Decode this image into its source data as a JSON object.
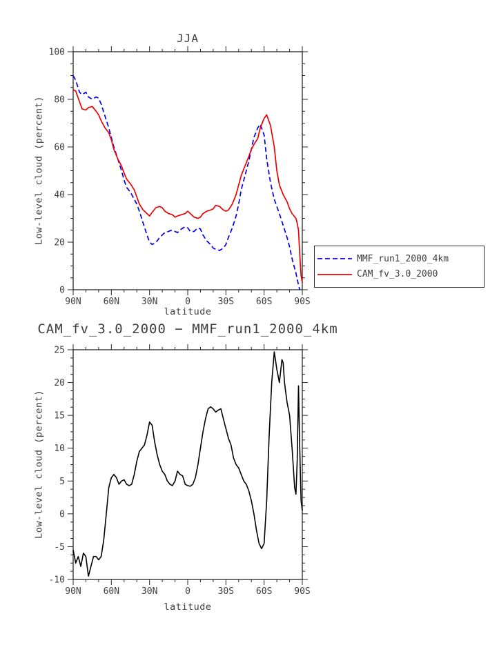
{
  "figure": {
    "background": "#ffffff",
    "text_color": "#3d3d3d",
    "axis_color": "#262626"
  },
  "chart_data": [
    {
      "type": "line",
      "title": "JJA",
      "xlabel": "latitude",
      "ylabel": "Low-level cloud (percent)",
      "xlim": [
        90,
        -90
      ],
      "ylim": [
        0,
        100
      ],
      "grid": false,
      "legend_position": "outside-right-bottom",
      "x_ticks": [
        {
          "value": 90,
          "label": "90N"
        },
        {
          "value": 60,
          "label": "60N"
        },
        {
          "value": 30,
          "label": "30N"
        },
        {
          "value": 0,
          "label": "0"
        },
        {
          "value": -30,
          "label": "30S"
        },
        {
          "value": -60,
          "label": "60S"
        },
        {
          "value": -90,
          "label": "90S"
        }
      ],
      "x_minor_step": 10,
      "y_ticks": [
        {
          "value": 0,
          "label": "0"
        },
        {
          "value": 20,
          "label": "20"
        },
        {
          "value": 40,
          "label": "40"
        },
        {
          "value": 60,
          "label": "60"
        },
        {
          "value": 80,
          "label": "80"
        },
        {
          "value": 100,
          "label": "100"
        }
      ],
      "y_minor_step": 5,
      "series": [
        {
          "id": "mmf-run1-2000-4km",
          "name": "MMF_run1_2000_4km",
          "color": "#0000ee",
          "style": "dashed",
          "dash": "7,4",
          "width": 1.7,
          "points": [
            [
              90,
              90
            ],
            [
              88,
              88
            ],
            [
              85,
              83
            ],
            [
              83,
              82
            ],
            [
              80,
              83
            ],
            [
              78,
              81
            ],
            [
              75,
              80
            ],
            [
              72,
              81
            ],
            [
              70,
              80.5
            ],
            [
              68,
              78
            ],
            [
              65,
              73
            ],
            [
              62,
              68
            ],
            [
              60,
              64
            ],
            [
              58,
              60
            ],
            [
              55,
              55
            ],
            [
              52,
              50
            ],
            [
              50,
              46
            ],
            [
              48,
              43
            ],
            [
              45,
              41
            ],
            [
              42,
              38
            ],
            [
              40,
              36
            ],
            [
              38,
              33
            ],
            [
              35,
              28
            ],
            [
              32,
              23
            ],
            [
              30,
              20
            ],
            [
              28,
              19
            ],
            [
              26,
              19.5
            ],
            [
              24,
              20.5
            ],
            [
              22,
              22
            ],
            [
              20,
              23
            ],
            [
              18,
              24
            ],
            [
              15,
              24.5
            ],
            [
              13,
              25
            ],
            [
              10,
              24.5
            ],
            [
              8,
              24
            ],
            [
              5,
              25.5
            ],
            [
              2,
              26.5
            ],
            [
              0,
              26
            ],
            [
              -2,
              24.5
            ],
            [
              -5,
              24.5
            ],
            [
              -8,
              26
            ],
            [
              -10,
              25.5
            ],
            [
              -12,
              23
            ],
            [
              -15,
              20.5
            ],
            [
              -18,
              19
            ],
            [
              -20,
              17.5
            ],
            [
              -22,
              17
            ],
            [
              -25,
              16.5
            ],
            [
              -28,
              17.5
            ],
            [
              -30,
              19
            ],
            [
              -32,
              22
            ],
            [
              -35,
              26
            ],
            [
              -38,
              31
            ],
            [
              -40,
              36
            ],
            [
              -42,
              42
            ],
            [
              -45,
              48
            ],
            [
              -48,
              54
            ],
            [
              -50,
              59
            ],
            [
              -52,
              64
            ],
            [
              -55,
              68
            ],
            [
              -57,
              69.5
            ],
            [
              -60,
              65
            ],
            [
              -62,
              55
            ],
            [
              -65,
              45
            ],
            [
              -68,
              38
            ],
            [
              -70,
              35
            ],
            [
              -72,
              32
            ],
            [
              -75,
              27
            ],
            [
              -78,
              22
            ],
            [
              -80,
              18
            ],
            [
              -82,
              13
            ],
            [
              -85,
              7
            ],
            [
              -87,
              2
            ],
            [
              -88,
              0
            ]
          ]
        },
        {
          "id": "cam-fv-3-0-2000",
          "name": "CAM_fv_3.0_2000",
          "color": "#ee0000",
          "style": "solid",
          "dash": "",
          "width": 1.7,
          "points": [
            [
              90,
              84
            ],
            [
              88,
              83.5
            ],
            [
              85,
              79
            ],
            [
              83,
              76
            ],
            [
              80,
              75.5
            ],
            [
              78,
              76.5
            ],
            [
              75,
              77
            ],
            [
              72,
              75
            ],
            [
              70,
              73.5
            ],
            [
              68,
              71
            ],
            [
              65,
              68
            ],
            [
              62,
              66
            ],
            [
              60,
              63
            ],
            [
              58,
              59
            ],
            [
              55,
              55
            ],
            [
              52,
              52
            ],
            [
              50,
              49
            ],
            [
              48,
              46.5
            ],
            [
              45,
              44.5
            ],
            [
              42,
              42
            ],
            [
              40,
              39
            ],
            [
              38,
              36
            ],
            [
              35,
              33.5
            ],
            [
              32,
              32
            ],
            [
              30,
              31
            ],
            [
              28,
              32.5
            ],
            [
              25,
              34.5
            ],
            [
              22,
              35
            ],
            [
              20,
              34.5
            ],
            [
              18,
              33
            ],
            [
              15,
              32
            ],
            [
              12,
              31.5
            ],
            [
              10,
              30.5
            ],
            [
              8,
              31
            ],
            [
              5,
              31.5
            ],
            [
              2,
              32
            ],
            [
              0,
              33
            ],
            [
              -2,
              32
            ],
            [
              -5,
              30.5
            ],
            [
              -8,
              30
            ],
            [
              -10,
              30.5
            ],
            [
              -12,
              32
            ],
            [
              -15,
              33
            ],
            [
              -18,
              33.5
            ],
            [
              -20,
              34
            ],
            [
              -22,
              35.5
            ],
            [
              -25,
              35
            ],
            [
              -28,
              33.5
            ],
            [
              -30,
              33
            ],
            [
              -32,
              33.5
            ],
            [
              -35,
              36
            ],
            [
              -38,
              40
            ],
            [
              -40,
              44
            ],
            [
              -42,
              48
            ],
            [
              -45,
              52
            ],
            [
              -48,
              56
            ],
            [
              -50,
              59
            ],
            [
              -52,
              61
            ],
            [
              -55,
              63.5
            ],
            [
              -57,
              68
            ],
            [
              -60,
              72
            ],
            [
              -62,
              73.5
            ],
            [
              -65,
              69
            ],
            [
              -68,
              60
            ],
            [
              -70,
              50
            ],
            [
              -72,
              44
            ],
            [
              -75,
              40
            ],
            [
              -78,
              37
            ],
            [
              -80,
              34
            ],
            [
              -82,
              32
            ],
            [
              -85,
              30
            ],
            [
              -86,
              28
            ],
            [
              -87,
              25
            ],
            [
              -88,
              15
            ],
            [
              -89,
              6
            ],
            [
              -90,
              3
            ]
          ]
        }
      ]
    },
    {
      "type": "line",
      "title": "CAM_fv_3.0_2000 − MMF_run1_2000_4km",
      "xlabel": "latitude",
      "ylabel": "Low-level cloud (percent)",
      "xlim": [
        90,
        -90
      ],
      "ylim": [
        -10,
        25
      ],
      "grid": false,
      "legend_position": "none",
      "x_ticks": [
        {
          "value": 90,
          "label": "90N"
        },
        {
          "value": 60,
          "label": "60N"
        },
        {
          "value": 30,
          "label": "30N"
        },
        {
          "value": 0,
          "label": "0"
        },
        {
          "value": -30,
          "label": "30S"
        },
        {
          "value": -60,
          "label": "60S"
        },
        {
          "value": -90,
          "label": "90S"
        }
      ],
      "x_minor_step": 10,
      "y_ticks": [
        {
          "value": -10,
          "label": "-10"
        },
        {
          "value": -5,
          "label": "-5"
        },
        {
          "value": 0,
          "label": "0"
        },
        {
          "value": 5,
          "label": "5"
        },
        {
          "value": 10,
          "label": "10"
        },
        {
          "value": 15,
          "label": "15"
        },
        {
          "value": 20,
          "label": "20"
        },
        {
          "value": 25,
          "label": "25"
        }
      ],
      "y_minor_step": 1.25,
      "series": [
        {
          "id": "difference",
          "name": "CAM_fv_3.0_2000 − MMF_run1_2000_4km",
          "color": "#000000",
          "style": "solid",
          "dash": "",
          "width": 1.6,
          "points": [
            [
              90,
              -5.5
            ],
            [
              88,
              -7.5
            ],
            [
              86,
              -6.5
            ],
            [
              84,
              -8
            ],
            [
              82,
              -6
            ],
            [
              80,
              -6.5
            ],
            [
              78,
              -9.5
            ],
            [
              76,
              -8
            ],
            [
              74,
              -6.5
            ],
            [
              72,
              -6.5
            ],
            [
              70,
              -7
            ],
            [
              68,
              -6.5
            ],
            [
              66,
              -4
            ],
            [
              64,
              0
            ],
            [
              62,
              4
            ],
            [
              60,
              5.5
            ],
            [
              58,
              6
            ],
            [
              56,
              5.5
            ],
            [
              54,
              4.5
            ],
            [
              52,
              5
            ],
            [
              50,
              5.2
            ],
            [
              48,
              4.5
            ],
            [
              46,
              4.3
            ],
            [
              44,
              4.5
            ],
            [
              42,
              6
            ],
            [
              40,
              8
            ],
            [
              38,
              9.5
            ],
            [
              36,
              10
            ],
            [
              34,
              10.5
            ],
            [
              32,
              12
            ],
            [
              30,
              14
            ],
            [
              28,
              13.5
            ],
            [
              26,
              11
            ],
            [
              24,
              9
            ],
            [
              22,
              7.5
            ],
            [
              20,
              6.5
            ],
            [
              18,
              6
            ],
            [
              16,
              5
            ],
            [
              14,
              4.5
            ],
            [
              12,
              4.3
            ],
            [
              10,
              5
            ],
            [
              8,
              6.5
            ],
            [
              6,
              6
            ],
            [
              4,
              5.8
            ],
            [
              2,
              4.5
            ],
            [
              0,
              4.3
            ],
            [
              -2,
              4.2
            ],
            [
              -4,
              4.5
            ],
            [
              -6,
              5.5
            ],
            [
              -8,
              7.5
            ],
            [
              -10,
              10
            ],
            [
              -12,
              12.5
            ],
            [
              -14,
              14.5
            ],
            [
              -16,
              16
            ],
            [
              -18,
              16.3
            ],
            [
              -20,
              16
            ],
            [
              -22,
              15.5
            ],
            [
              -24,
              15.8
            ],
            [
              -26,
              16
            ],
            [
              -28,
              14.5
            ],
            [
              -30,
              13
            ],
            [
              -32,
              11.5
            ],
            [
              -34,
              10.5
            ],
            [
              -36,
              8.5
            ],
            [
              -38,
              7.5
            ],
            [
              -40,
              7
            ],
            [
              -42,
              6
            ],
            [
              -44,
              5
            ],
            [
              -46,
              4.5
            ],
            [
              -48,
              3.5
            ],
            [
              -50,
              2
            ],
            [
              -52,
              0
            ],
            [
              -54,
              -2.5
            ],
            [
              -56,
              -4.5
            ],
            [
              -58,
              -5.3
            ],
            [
              -60,
              -4.5
            ],
            [
              -62,
              2
            ],
            [
              -64,
              12
            ],
            [
              -66,
              20
            ],
            [
              -68,
              24.7
            ],
            [
              -70,
              22
            ],
            [
              -72,
              20
            ],
            [
              -74,
              23.5
            ],
            [
              -75,
              23
            ],
            [
              -76,
              20
            ],
            [
              -78,
              17
            ],
            [
              -80,
              15
            ],
            [
              -82,
              10
            ],
            [
              -84,
              4
            ],
            [
              -85,
              3
            ],
            [
              -86,
              8
            ],
            [
              -87,
              19.5
            ],
            [
              -88,
              10
            ],
            [
              -89,
              2
            ],
            [
              -90,
              0.5
            ]
          ]
        }
      ]
    }
  ]
}
